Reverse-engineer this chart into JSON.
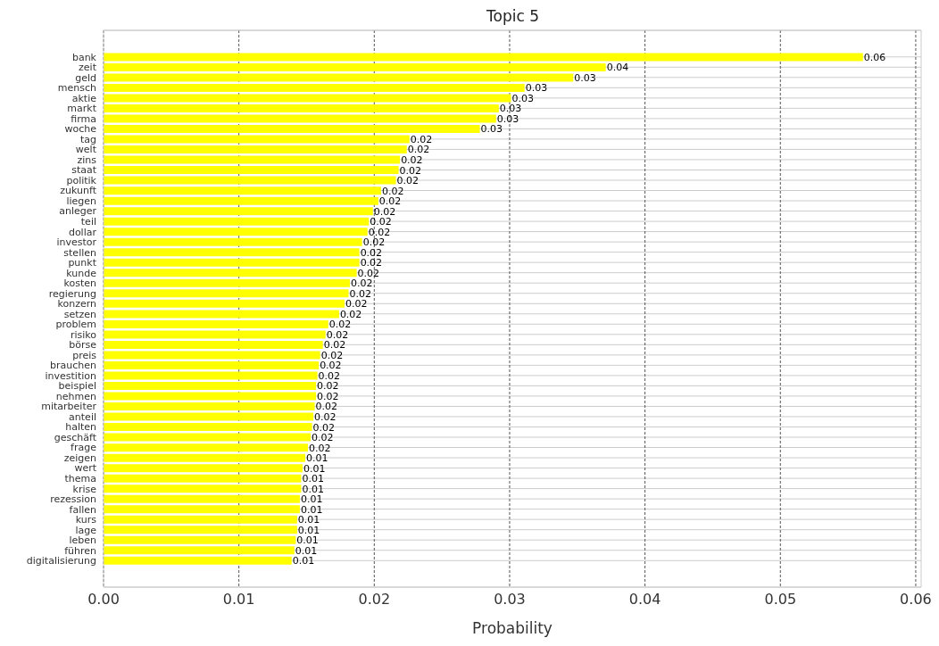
{
  "chart_data": {
    "type": "bar",
    "orientation": "horizontal",
    "title": "Topic 5",
    "xlabel": "Probability",
    "categories": [
      "bank",
      "zeit",
      "geld",
      "mensch",
      "aktie",
      "markt",
      "firma",
      "woche",
      "tag",
      "welt",
      "zins",
      "staat",
      "politik",
      "zukunft",
      "liegen",
      "anleger",
      "teil",
      "dollar",
      "investor",
      "stellen",
      "punkt",
      "kunde",
      "kosten",
      "regierung",
      "konzern",
      "setzen",
      "problem",
      "risiko",
      "börse",
      "preis",
      "brauchen",
      "investition",
      "beispiel",
      "nehmen",
      "mitarbeiter",
      "anteil",
      "halten",
      "geschäft",
      "frage",
      "zeigen",
      "wert",
      "thema",
      "krise",
      "rezession",
      "fallen",
      "kurs",
      "lage",
      "leben",
      "führen",
      "digitalisierung"
    ],
    "values": [
      0.0561,
      0.0371,
      0.0347,
      0.0311,
      0.0301,
      0.0292,
      0.029,
      0.0278,
      0.0226,
      0.0224,
      0.0219,
      0.0218,
      0.0216,
      0.0205,
      0.0203,
      0.0199,
      0.0196,
      0.0195,
      0.0191,
      0.0189,
      0.0189,
      0.0187,
      0.0182,
      0.0181,
      0.0178,
      0.0174,
      0.0166,
      0.0164,
      0.0162,
      0.016,
      0.0159,
      0.0158,
      0.0157,
      0.0157,
      0.0156,
      0.0155,
      0.0154,
      0.0153,
      0.0151,
      0.0149,
      0.0147,
      0.0146,
      0.0146,
      0.0145,
      0.0145,
      0.0143,
      0.0143,
      0.0142,
      0.0141,
      0.0139
    ],
    "value_labels": [
      "0.06",
      "0.04",
      "0.03",
      "0.03",
      "0.03",
      "0.03",
      "0.03",
      "0.03",
      "0.02",
      "0.02",
      "0.02",
      "0.02",
      "0.02",
      "0.02",
      "0.02",
      "0.02",
      "0.02",
      "0.02",
      "0.02",
      "0.02",
      "0.02",
      "0.02",
      "0.02",
      "0.02",
      "0.02",
      "0.02",
      "0.02",
      "0.02",
      "0.02",
      "0.02",
      "0.02",
      "0.02",
      "0.02",
      "0.02",
      "0.02",
      "0.02",
      "0.02",
      "0.02",
      "0.02",
      "0.01",
      "0.01",
      "0.01",
      "0.01",
      "0.01",
      "0.01",
      "0.01",
      "0.01",
      "0.01",
      "0.01",
      "0.01"
    ],
    "color": "#ffff00",
    "xlim": [
      0,
      0.0604
    ],
    "xticks": [
      {
        "value": 0,
        "label": "0.00"
      },
      {
        "value": 0.01,
        "label": "0.01"
      },
      {
        "value": 0.02,
        "label": "0.02"
      },
      {
        "value": 0.03,
        "label": "0.03"
      },
      {
        "value": 0.04,
        "label": "0.04"
      },
      {
        "value": 0.05,
        "label": "0.05"
      },
      {
        "value": 0.06,
        "label": "0.06"
      }
    ],
    "grid": true
  }
}
